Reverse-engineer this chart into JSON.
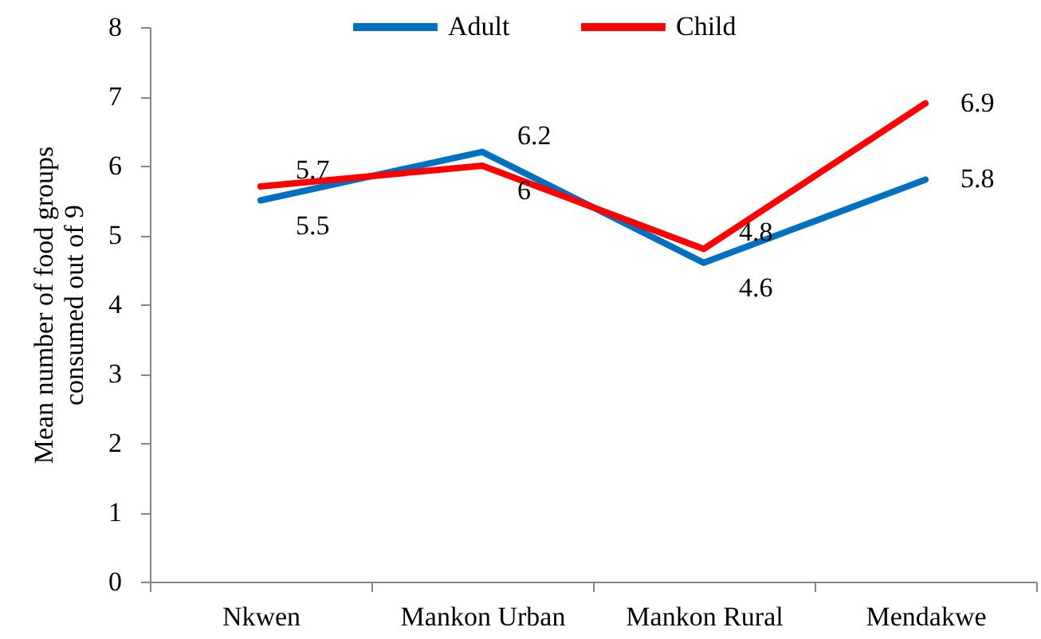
{
  "chart_data": {
    "type": "line",
    "categories": [
      "Nkwen",
      "Mankon Urban",
      "Mankon Rural",
      "Mendakwe"
    ],
    "series": [
      {
        "name": "Adult",
        "color": "#0070c0",
        "values": [
          5.5,
          6.2,
          4.6,
          5.8
        ]
      },
      {
        "name": "Child",
        "color": "#ff0000",
        "values": [
          5.7,
          6,
          4.8,
          6.9
        ]
      }
    ],
    "ylabel": "Mean number of food groups consumed out of 9",
    "ylim": [
      0,
      8
    ],
    "yticks": [
      0,
      1,
      2,
      3,
      4,
      5,
      6,
      7,
      8
    ],
    "data_labels": true,
    "legend": "top",
    "grid": false
  }
}
